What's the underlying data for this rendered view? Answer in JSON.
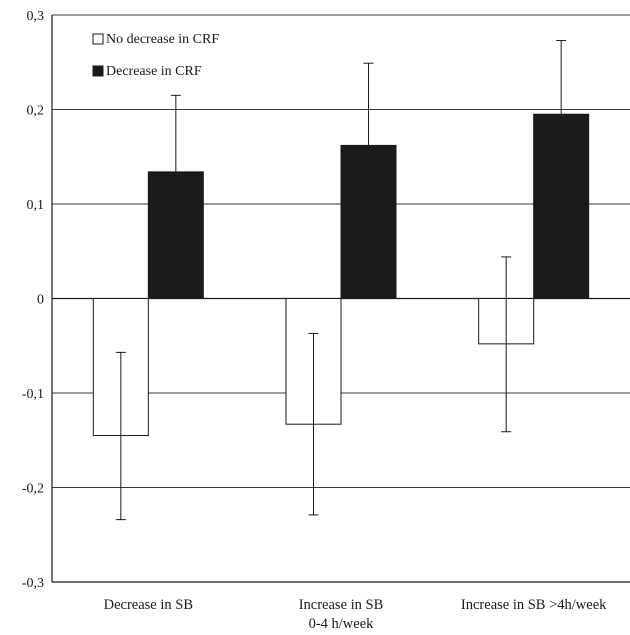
{
  "chart_data": {
    "type": "bar",
    "categories": [
      [
        "Decrease in SB"
      ],
      [
        "Increase in SB",
        "0-4 h/week"
      ],
      [
        "Increase in SB >4h/week"
      ]
    ],
    "series": [
      {
        "name": "No decrease in CRF",
        "values": [
          -0.145,
          -0.133,
          -0.048
        ],
        "error_high": [
          -0.057,
          -0.037,
          0.044
        ],
        "error_low": [
          -0.234,
          -0.229,
          -0.141
        ],
        "fill": "#ffffff"
      },
      {
        "name": "Decrease in CRF",
        "values": [
          0.134,
          0.162,
          0.195
        ],
        "error_high": [
          0.215,
          0.249,
          0.273
        ],
        "error_low": [
          0.134,
          0.162,
          0.195
        ],
        "fill": "#1a1a1a"
      }
    ],
    "ylim": [
      -0.3,
      0.3
    ],
    "yticks": [
      0.3,
      0.2,
      0.1,
      0,
      -0.1,
      -0.2,
      -0.3
    ],
    "ytick_labels": [
      "0,3",
      "0,2",
      "0,1",
      "0",
      "-0,1",
      "-0,2",
      "-0,3"
    ],
    "grid": true,
    "legend_position": "top-left"
  }
}
